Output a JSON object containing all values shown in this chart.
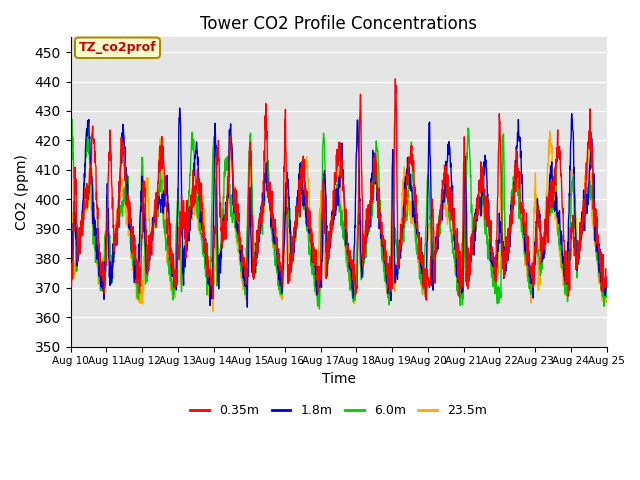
{
  "title": "Tower CO2 Profile Concentrations",
  "xlabel": "Time",
  "ylabel": "CO2 (ppm)",
  "ylim": [
    350,
    455
  ],
  "yticks": [
    350,
    360,
    370,
    380,
    390,
    400,
    410,
    420,
    430,
    440,
    450
  ],
  "series_labels": [
    "0.35m",
    "1.8m",
    "6.0m",
    "23.5m"
  ],
  "series_colors": [
    "#ff0000",
    "#0000cc",
    "#00cc00",
    "#ffaa00"
  ],
  "line_width": 1.0,
  "annotation_text": "TZ_co2prof",
  "annotation_color": "#cc0000",
  "annotation_bg": "#ffffcc",
  "annotation_border": "#aa8800",
  "bg_color": "#e5e5e5",
  "n_days": 15,
  "n_points": 1800,
  "base_co2": 385,
  "ylim_low": 350,
  "ylim_high": 455
}
